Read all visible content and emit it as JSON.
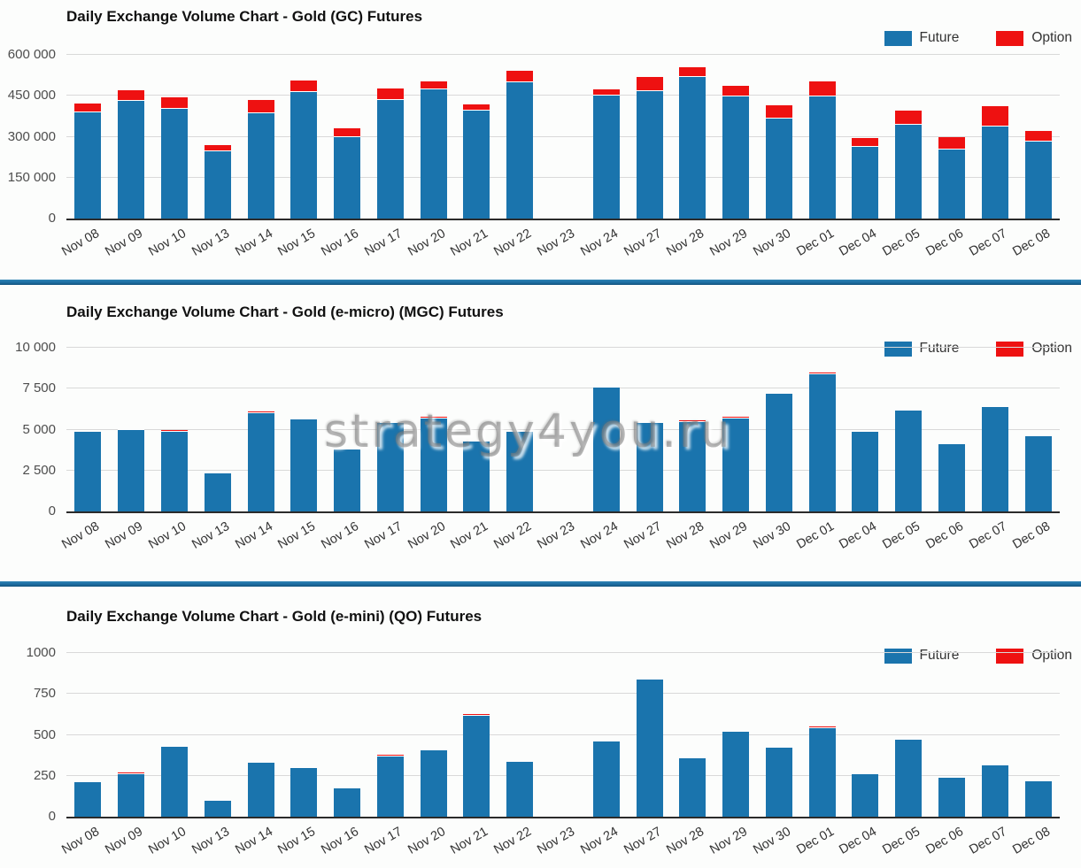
{
  "watermark": "strategy4you.ru",
  "colors": {
    "future": "#1a74ad",
    "option": "#ee1111",
    "grid": "#d9d9d9",
    "axis": "#2b2b2b",
    "divider": "#1c6da1"
  },
  "legend": {
    "future_label": "Future",
    "option_label": "Option"
  },
  "categories": [
    "Nov 08",
    "Nov 09",
    "Nov 10",
    "Nov 13",
    "Nov 14",
    "Nov 15",
    "Nov 16",
    "Nov 17",
    "Nov 20",
    "Nov 21",
    "Nov 22",
    "Nov 23",
    "Nov 24",
    "Nov 27",
    "Nov 28",
    "Nov 29",
    "Nov 30",
    "Dec 01",
    "Dec 04",
    "Dec 05",
    "Dec 06",
    "Dec 07",
    "Dec 08"
  ],
  "chart_data": [
    {
      "type": "bar",
      "stacked": true,
      "title": "Daily Exchange Volume Chart - Gold (GC) Futures",
      "xlabel": "",
      "ylabel": "",
      "ylim": [
        0,
        600000
      ],
      "yticks": [
        0,
        150000,
        300000,
        450000,
        600000
      ],
      "ytick_labels": [
        "0",
        "150 000",
        "300 000",
        "450 000",
        "600 000"
      ],
      "grid": true,
      "legend_position": "top-right",
      "series": [
        {
          "name": "Future",
          "color": "#1a74ad",
          "values": [
            390000,
            430000,
            403000,
            245000,
            385000,
            465000,
            297000,
            433000,
            474000,
            396000,
            500000,
            3000,
            450000,
            467000,
            519000,
            447000,
            365000,
            448000,
            264000,
            343000,
            253000,
            338000,
            282000
          ]
        },
        {
          "name": "Option",
          "color": "#ee1111",
          "values": [
            32000,
            41000,
            40000,
            23000,
            50000,
            40000,
            35000,
            45000,
            29000,
            23000,
            42000,
            1000,
            25000,
            53000,
            35000,
            40000,
            50000,
            54000,
            32000,
            53000,
            46000,
            73000,
            39000
          ]
        }
      ]
    },
    {
      "type": "bar",
      "stacked": true,
      "title": "Daily Exchange Volume Chart - Gold (e-micro) (MGC) Futures",
      "xlabel": "",
      "ylabel": "",
      "ylim": [
        0,
        10000
      ],
      "yticks": [
        0,
        2500,
        5000,
        7500,
        10000
      ],
      "ytick_labels": [
        "0",
        "2 500",
        "5 000",
        "7 500",
        "10 000"
      ],
      "grid": true,
      "legend_position": "top-right",
      "series": [
        {
          "name": "Future",
          "color": "#1a74ad",
          "values": [
            4870,
            4980,
            4890,
            2350,
            6020,
            5630,
            3800,
            5400,
            5700,
            4300,
            4880,
            30,
            7550,
            5400,
            5480,
            5700,
            7200,
            8400,
            4850,
            6150,
            4100,
            6380,
            4620
          ]
        },
        {
          "name": "Option",
          "color": "#ee1111",
          "values": [
            60,
            50,
            60,
            40,
            70,
            70,
            50,
            60,
            70,
            50,
            60,
            10,
            70,
            60,
            70,
            60,
            70,
            80,
            50,
            60,
            50,
            70,
            50
          ]
        }
      ]
    },
    {
      "type": "bar",
      "stacked": true,
      "title": "Daily Exchange Volume Chart - Gold (e-mini) (QO) Futures",
      "xlabel": "",
      "ylabel": "",
      "ylim": [
        0,
        1000
      ],
      "yticks": [
        0,
        250,
        500,
        750,
        1000
      ],
      "ytick_labels": [
        "0",
        "250",
        "500",
        "750",
        "1000"
      ],
      "grid": true,
      "legend_position": "top-right",
      "series": [
        {
          "name": "Future",
          "color": "#1a74ad",
          "values": [
            213,
            262,
            425,
            100,
            330,
            300,
            173,
            370,
            405,
            618,
            335,
            3,
            458,
            840,
            355,
            520,
            420,
            543,
            260,
            468,
            240,
            315,
            218
          ]
        },
        {
          "name": "Option",
          "color": "#ee1111",
          "values": [
            5,
            6,
            6,
            3,
            6,
            5,
            4,
            6,
            6,
            7,
            5,
            1,
            6,
            6,
            5,
            6,
            6,
            7,
            5,
            6,
            4,
            6,
            5
          ]
        }
      ]
    }
  ]
}
